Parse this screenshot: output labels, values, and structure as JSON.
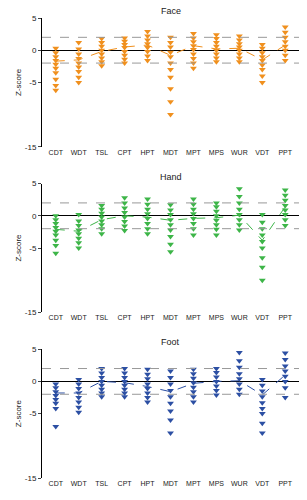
{
  "chart_data": [
    {
      "type": "scatter",
      "title": "Face",
      "y_label": "Z-score",
      "color": "#f0901e",
      "marker": "triangle-down",
      "line_style": "dash",
      "categories": [
        "CDT",
        "WDT",
        "TSL",
        "CPT",
        "HPT",
        "MDT",
        "MPT",
        "MPS",
        "WUR",
        "VDT",
        "PPT"
      ],
      "points": [
        [
          0.3,
          -0.4,
          -1.0,
          -1.6,
          -2.2,
          -2.8,
          -3.5,
          -4.5,
          -5.5,
          -6.2
        ],
        [
          1.2,
          0.2,
          -0.6,
          -1.3,
          -2.0,
          -2.6,
          -3.3,
          -4.2,
          -5.0
        ],
        [
          1.8,
          1.2,
          0.6,
          0,
          -0.6,
          -1.2,
          -1.8,
          -2.4
        ],
        [
          1.9,
          1.4,
          0.9,
          0.4,
          -0.2,
          -0.8,
          -1.4,
          -2.0
        ],
        [
          2.9,
          2.2,
          1.6,
          1.0,
          0.4,
          -0.2,
          -0.9,
          -1.6
        ],
        [
          2.0,
          1.2,
          0.5,
          -0.3,
          -1.0,
          -2.0,
          -3.0,
          -4.2,
          -6.0,
          -8.0,
          -10.0
        ],
        [
          2.6,
          1.9,
          1.3,
          0.7,
          0.1,
          -0.6,
          -1.3,
          -2.0,
          -2.8
        ],
        [
          2.4,
          1.8,
          1.2,
          0.6,
          0,
          -0.6,
          -1.2,
          -1.8
        ],
        [
          2.2,
          1.6,
          1.0,
          0.5,
          0,
          -0.6,
          -1.2,
          -1.8
        ],
        [
          0.9,
          0.3,
          -0.4,
          -1.0,
          -1.6,
          -2.3,
          -3.0,
          -4.0,
          -5.0
        ],
        [
          3.6,
          2.8,
          2.0,
          1.3,
          0.6,
          0,
          -0.8,
          -1.6
        ]
      ],
      "medians": [
        -1.7,
        -1.5,
        -0.2,
        0.5,
        0.8,
        -0.8,
        0.7,
        0.2,
        0.3,
        -1.5,
        0.8
      ],
      "reference_lines": [
        -2,
        2
      ],
      "ylim": [
        -15,
        5
      ],
      "yticks": [
        -15,
        -5,
        0,
        5
      ]
    },
    {
      "type": "scatter",
      "title": "Hand",
      "y_label": "Z-score",
      "color": "#3db548",
      "marker": "triangle-down",
      "line_style": "dash",
      "categories": [
        "CDT",
        "WDT",
        "TSL",
        "CPT",
        "HPT",
        "MDT",
        "MPT",
        "MPS",
        "WUR",
        "VDT",
        "PPT"
      ],
      "points": [
        [
          0,
          -0.6,
          -1.2,
          -1.8,
          -2.4,
          -3.0,
          -3.8,
          -4.6,
          -5.8
        ],
        [
          0.2,
          -0.8,
          -1.5,
          -2.2,
          -2.8,
          -3.5,
          -4.2,
          -5.0
        ],
        [
          1.6,
          1.0,
          0.4,
          -0.2,
          -0.8,
          -1.4,
          -2.0,
          -2.8
        ],
        [
          2.8,
          2.0,
          1.2,
          0.5,
          -0.2,
          -0.9,
          -1.6,
          -2.3
        ],
        [
          2.6,
          1.8,
          1.0,
          0.3,
          -0.4,
          -1.2,
          -2.0,
          -2.8
        ],
        [
          1.7,
          0.9,
          0.2,
          -0.6,
          -1.4,
          -2.2,
          -3.2,
          -4.4,
          -5.6
        ],
        [
          2.6,
          1.8,
          1.0,
          0.3,
          -0.4,
          -1.2,
          -2.0,
          -3.0
        ],
        [
          2.0,
          1.4,
          0.7,
          0,
          -0.7,
          -1.4,
          -2.1,
          -3.0
        ],
        [
          4.2,
          3.0,
          2.0,
          1.0,
          0.2,
          -0.6,
          -1.4,
          -2.2
        ],
        [
          0.2,
          -1.0,
          -2.0,
          -3.0,
          -4.0,
          -5.0,
          -6.5,
          -8.0,
          -10.0
        ],
        [
          4.0,
          3.2,
          2.4,
          1.6,
          0.9,
          0.2,
          -0.6,
          -1.5
        ]
      ],
      "medians": [
        -2.1,
        -2.4,
        -0.6,
        0.0,
        -0.2,
        -0.7,
        -0.4,
        -0.3,
        0.1,
        -3.8,
        1.4
      ],
      "reference_lines": [
        -2,
        2
      ],
      "ylim": [
        -15,
        5
      ],
      "yticks": [
        -15,
        -5,
        0,
        5
      ]
    },
    {
      "type": "scatter",
      "title": "Foot",
      "y_label": "Z-score",
      "color": "#2c4fa3",
      "marker": "triangle-down",
      "line_style": "dash",
      "categories": [
        "CDT",
        "WDT",
        "TSL",
        "CPT",
        "HPT",
        "MDT",
        "MPT",
        "MPS",
        "WUR",
        "VDT",
        "PPT"
      ],
      "points": [
        [
          -0.4,
          -1.0,
          -1.6,
          -2.2,
          -2.8,
          -3.4,
          -4.2,
          -7.0
        ],
        [
          0.3,
          -0.4,
          -1.1,
          -1.8,
          -2.5,
          -3.2,
          -4.0,
          -4.8
        ],
        [
          2.0,
          1.3,
          0.6,
          0,
          -0.6,
          -1.2,
          -1.8,
          -2.4
        ],
        [
          2.0,
          1.3,
          0.6,
          0,
          -0.6,
          -1.2,
          -1.8,
          -2.4
        ],
        [
          1.9,
          1.1,
          0.4,
          -0.4,
          -1.1,
          -1.8,
          -2.5,
          -3.2
        ],
        [
          1.6,
          0.6,
          -0.4,
          -1.4,
          -2.4,
          -3.4,
          -4.6,
          -6.0,
          -8.0
        ],
        [
          1.9,
          1.2,
          0.5,
          -0.2,
          -0.9,
          -1.6,
          -2.4,
          -3.2
        ],
        [
          2.0,
          1.4,
          0.7,
          0,
          -0.7,
          -1.4,
          -2.1
        ],
        [
          4.5,
          3.2,
          2.2,
          1.2,
          0.4,
          -0.4,
          -1.2,
          -2.0
        ],
        [
          0.3,
          -0.6,
          -1.5,
          -2.4,
          -3.3,
          -4.2,
          -5.0,
          -6.5,
          -8.0
        ],
        [
          4.4,
          3.4,
          2.4,
          1.6,
          0.8,
          0,
          -1.0,
          -2.5
        ]
      ],
      "medians": [
        -1.8,
        -1.8,
        0.0,
        -0.2,
        -0.8,
        -1.6,
        -0.3,
        0.0,
        0.1,
        -2.1,
        1.0
      ],
      "reference_lines": [
        -2,
        2
      ],
      "ylim": [
        -15,
        5
      ],
      "yticks": [
        -15,
        -5,
        0,
        5
      ]
    }
  ]
}
